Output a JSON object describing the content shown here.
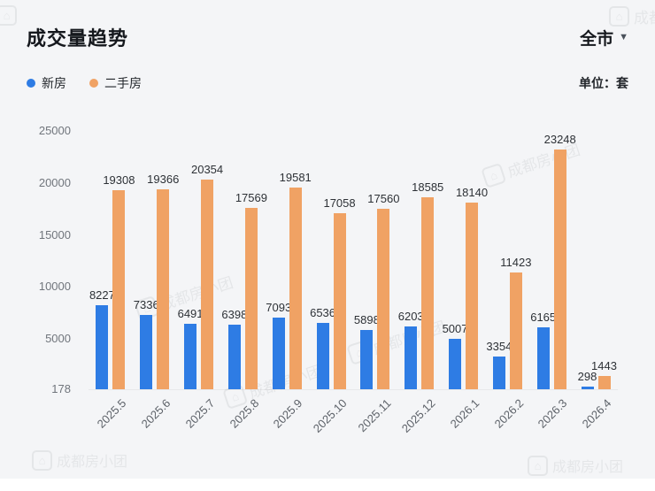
{
  "header": {
    "title": "成交量趋势",
    "region": "全市",
    "unit_label": "单位：套"
  },
  "legend": [
    {
      "label": "新房",
      "color": "#2e7ce4"
    },
    {
      "label": "二手房",
      "color": "#f0a264"
    }
  ],
  "watermark": {
    "text": "成都房小团"
  },
  "chart_data": {
    "type": "bar",
    "title": "成交量趋势",
    "categories": [
      "2025.5",
      "2025.6",
      "2025.7",
      "2025.8",
      "2025.9",
      "2025.10",
      "2025.11",
      "2025.12",
      "2026.1",
      "2026.2",
      "2026.3",
      "2026.4"
    ],
    "series": [
      {
        "name": "新房",
        "key": "new-home",
        "color": "#2e7ce4",
        "values": [
          8227,
          7336,
          6491,
          6398,
          7093,
          6536,
          5898,
          6203,
          5007,
          3354,
          6165,
          298
        ]
      },
      {
        "name": "二手房",
        "key": "second-hand",
        "color": "#f0a264",
        "values": [
          19308,
          19366,
          20354,
          17569,
          19581,
          17058,
          17560,
          18585,
          18140,
          11423,
          23248,
          1443
        ]
      }
    ],
    "y_ticks": [
      25000,
      20000,
      15000,
      10000,
      5000,
      178
    ],
    "ylim": [
      178,
      25000
    ],
    "xlabel": "",
    "ylabel": "",
    "unit": "套",
    "grid": false,
    "legend_position": "top-left"
  }
}
